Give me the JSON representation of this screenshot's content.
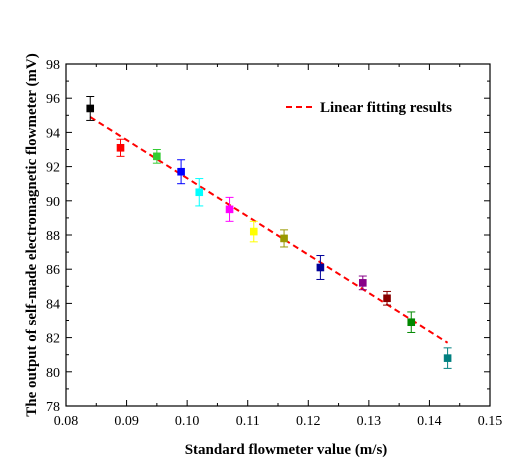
{
  "chart_data": {
    "type": "scatter",
    "xlabel": "Standard flowmeter value (m/s)",
    "ylabel": "The output of self-made electromagnetic flowmeter (mV)",
    "xlim": [
      0.08,
      0.15
    ],
    "ylim": [
      78,
      98
    ],
    "x_ticks": [
      "0.08",
      "0.09",
      "0.10",
      "0.11",
      "0.12",
      "0.13",
      "0.14",
      "0.15"
    ],
    "y_ticks": [
      "78",
      "80",
      "82",
      "84",
      "86",
      "88",
      "90",
      "92",
      "94",
      "96",
      "98"
    ],
    "grid": false,
    "legend_position": "top-right",
    "points": [
      {
        "x": 0.084,
        "y": 95.4,
        "err": 0.7,
        "color": "#000000"
      },
      {
        "x": 0.089,
        "y": 93.1,
        "err": 0.5,
        "color": "#ff0000"
      },
      {
        "x": 0.095,
        "y": 92.6,
        "err": 0.4,
        "color": "#33cc33"
      },
      {
        "x": 0.099,
        "y": 91.7,
        "err": 0.7,
        "color": "#0000ff"
      },
      {
        "x": 0.102,
        "y": 90.5,
        "err": 0.8,
        "color": "#00ffff"
      },
      {
        "x": 0.107,
        "y": 89.5,
        "err": 0.7,
        "color": "#ff00ff"
      },
      {
        "x": 0.111,
        "y": 88.2,
        "err": 0.6,
        "color": "#ffff00"
      },
      {
        "x": 0.116,
        "y": 87.8,
        "err": 0.5,
        "color": "#999900"
      },
      {
        "x": 0.122,
        "y": 86.1,
        "err": 0.7,
        "color": "#000099"
      },
      {
        "x": 0.129,
        "y": 85.2,
        "err": 0.4,
        "color": "#880088"
      },
      {
        "x": 0.133,
        "y": 84.3,
        "err": 0.4,
        "color": "#880000"
      },
      {
        "x": 0.137,
        "y": 82.9,
        "err": 0.6,
        "color": "#008800"
      },
      {
        "x": 0.143,
        "y": 80.8,
        "err": 0.6,
        "color": "#008080"
      }
    ],
    "fit_line": {
      "name": "Linear fitting results",
      "color": "#ff0000",
      "x": [
        0.084,
        0.143
      ],
      "y": [
        94.9,
        81.7
      ]
    }
  }
}
